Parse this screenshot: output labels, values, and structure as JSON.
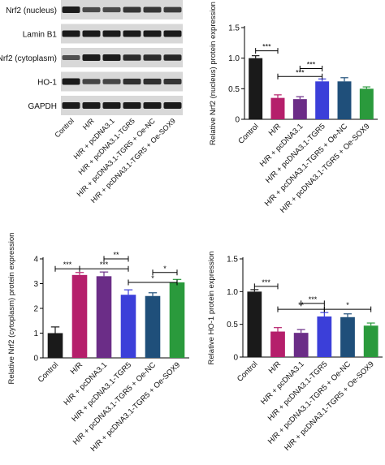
{
  "colors": {
    "series": [
      "#1a1a1a",
      "#b51f6b",
      "#6b2d87",
      "#3b3fd9",
      "#1f4f7a",
      "#2a9a3c"
    ],
    "blot_bg": "#d8d8d8",
    "band": "#1b1b1b"
  },
  "blot": {
    "proteins": [
      "Nrf2 (nucleus)",
      "Lamin B1",
      "Nrf2 (cytoplasm)",
      "HO-1",
      "GAPDH"
    ],
    "band_intensity": [
      [
        1.0,
        0.55,
        0.55,
        0.75,
        0.75,
        0.7
      ],
      [
        1.0,
        1.0,
        1.0,
        1.0,
        1.0,
        1.0
      ],
      [
        0.5,
        1.0,
        1.0,
        0.85,
        0.85,
        0.9
      ],
      [
        1.0,
        0.6,
        0.6,
        0.8,
        0.8,
        0.75
      ],
      [
        1.0,
        1.0,
        1.0,
        1.0,
        1.0,
        1.0
      ]
    ],
    "lanes": [
      "Control",
      "H/R",
      "H/R + pcDNA3.1",
      "H/R + pcDNA3.1-TGR5",
      "H/R + pcDNA3.1-TGR5 + Oe-NC",
      "H/R + pcDNA3.1-TGR5 + Oe-SOX9"
    ]
  },
  "chart_data": [
    {
      "id": "nucleus",
      "type": "bar",
      "ylabel": "Relative Nrf2 (nucleus) protein expression",
      "ylim": [
        0,
        1.5
      ],
      "yticks": [
        "0",
        "0.5",
        "1.0",
        "1.5"
      ],
      "categories": [
        "Control",
        "H/R",
        "H/R + pcDNA3.1",
        "H/R + pcDNA3.1-TGR5",
        "H/R + pcDNA3.1-TGR5 + Oe-NC",
        "H/R + pcDNA3.1-TGR5 + Oe-SOX9"
      ],
      "values": [
        1.0,
        0.35,
        0.33,
        0.62,
        0.62,
        0.5
      ],
      "errors": [
        0.04,
        0.05,
        0.04,
        0.04,
        0.06,
        0.03
      ],
      "significance": [
        {
          "from": 0,
          "to": 1,
          "text": "***",
          "y": 1.12
        },
        {
          "from": 2,
          "to": 3,
          "text": "***",
          "y": 0.83
        },
        {
          "from": 1,
          "to": 3,
          "text": "***",
          "y": 0.7
        }
      ]
    },
    {
      "id": "cyto",
      "type": "bar",
      "ylabel": "Relative Nrf2 (cytoplasm) protein expression",
      "ylim": [
        0,
        4
      ],
      "yticks": [
        "0",
        "1",
        "2",
        "3",
        "4"
      ],
      "categories": [
        "Control",
        "H/R",
        "H/R + pcDNA3.1",
        "H/R + pcDNA3.1-TGR5",
        "H/R + pcDNA3.1-TGR5 + Oe-NC",
        "H/R + pcDNA3.1-TGR5 + Oe-SOX9"
      ],
      "values": [
        1.0,
        3.35,
        3.3,
        2.55,
        2.5,
        3.05
      ],
      "errors": [
        0.25,
        0.1,
        0.17,
        0.2,
        0.13,
        0.12
      ],
      "significance": [
        {
          "from": 0,
          "to": 1,
          "text": "***",
          "y": 3.6
        },
        {
          "from": 1,
          "to": 3,
          "text": "***",
          "y": 3.6
        },
        {
          "from": 2,
          "to": 3,
          "text": "**",
          "y": 4.0
        },
        {
          "from": 4,
          "to": 5,
          "text": "*",
          "y": 3.45
        },
        {
          "from": 3,
          "to": 5,
          "text": "*",
          "y": 3.05
        }
      ]
    },
    {
      "id": "ho1",
      "type": "bar",
      "ylabel": "Relative HO-1 protein expression",
      "ylim": [
        0,
        1.5
      ],
      "yticks": [
        "0",
        "0.5",
        "1.0",
        "1.5"
      ],
      "categories": [
        "Control",
        "H/R",
        "H/R + pcDNA3.1",
        "H/R + pcDNA3.1-TGR5",
        "H/R + pcDNA3.1-TGR5 + Oe-NC",
        "H/R + pcDNA3.1-TGR5 + Oe-SOX9"
      ],
      "values": [
        1.0,
        0.39,
        0.37,
        0.62,
        0.61,
        0.48
      ],
      "errors": [
        0.03,
        0.06,
        0.05,
        0.06,
        0.05,
        0.04
      ],
      "significance": [
        {
          "from": 0,
          "to": 1,
          "text": "***",
          "y": 1.08
        },
        {
          "from": 2,
          "to": 3,
          "text": "***",
          "y": 0.82
        },
        {
          "from": 1,
          "to": 3,
          "text": "**",
          "y": 0.73
        },
        {
          "from": 3,
          "to": 5,
          "text": "*",
          "y": 0.73
        }
      ]
    }
  ]
}
